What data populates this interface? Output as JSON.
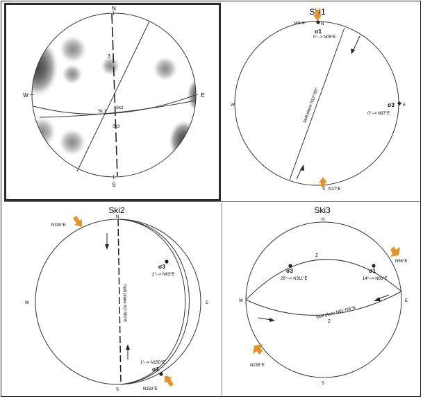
{
  "cardinals": {
    "n": "N",
    "s": "S",
    "e": "E",
    "w": "W"
  },
  "panel1": {
    "labels": {
      "l3": "3",
      "sk1": "Sk 1",
      "sk2": "Sk2",
      "sk3": "Sk3"
    }
  },
  "ski1": {
    "title": "Ski1",
    "sigma1": "σ1",
    "sigma1_trend": "N05°E",
    "sigma1_plunge": "0°--> N05°E",
    "sigma3": "σ3",
    "sigma3_plunge": "0°--> N97°E",
    "south_trend": "N17°E",
    "fault_plane": "fault plane N12°/90°"
  },
  "ski2": {
    "title": "Ski2",
    "north_trend": "N330°E",
    "sigma3": "σ3",
    "sigma3_plunge": "2°--> N63°E",
    "sigma1": "σ1",
    "sigma1_plunge": "1°--> N150°E",
    "sigma1_trend": "N150°E",
    "fault_plane": "fault plane N1°/80°E"
  },
  "ski3": {
    "title": "Ski3",
    "ne_trend": "N55°E",
    "sigma3": "σ3",
    "sigma3_plunge": "26°--> N311°E",
    "sigma1": "σ1",
    "sigma1_plunge": "14°--> N63°E",
    "sw_trend": "N235°E",
    "fault_plane": "fault plane N81°/28°N",
    "top_mark": "2",
    "bottom_mark": "2"
  },
  "colors": {
    "arrow": "#e8922a",
    "line": "#333333",
    "density_dark": "#5a5a5a",
    "density_light": "#cfcfcf"
  }
}
